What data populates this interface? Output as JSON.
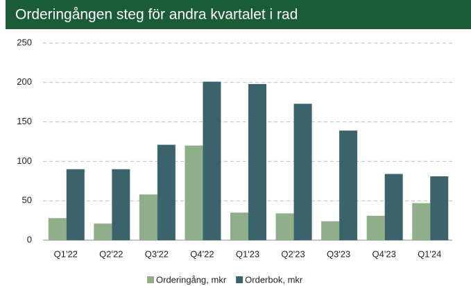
{
  "chart_data": {
    "type": "bar",
    "title": "Orderingången steg för andra kvartalet i rad",
    "categories": [
      "Q1'22",
      "Q2'22",
      "Q3'22",
      "Q4'22",
      "Q1'23",
      "Q2'23",
      "Q3'23",
      "Q4'23",
      "Q1'24"
    ],
    "series": [
      {
        "name": "Orderingång, mkr",
        "color": "#8faf88",
        "values": [
          28,
          21,
          58,
          120,
          35,
          34,
          24,
          31,
          47
        ]
      },
      {
        "name": "Orderbok, mkr",
        "color": "#3a636b",
        "values": [
          90,
          90,
          121,
          201,
          198,
          173,
          139,
          84,
          81
        ]
      }
    ],
    "ylim": [
      0,
      250
    ],
    "yticks": [
      0,
      50,
      100,
      150,
      200,
      250
    ],
    "grid": true,
    "legend": "bottom"
  }
}
